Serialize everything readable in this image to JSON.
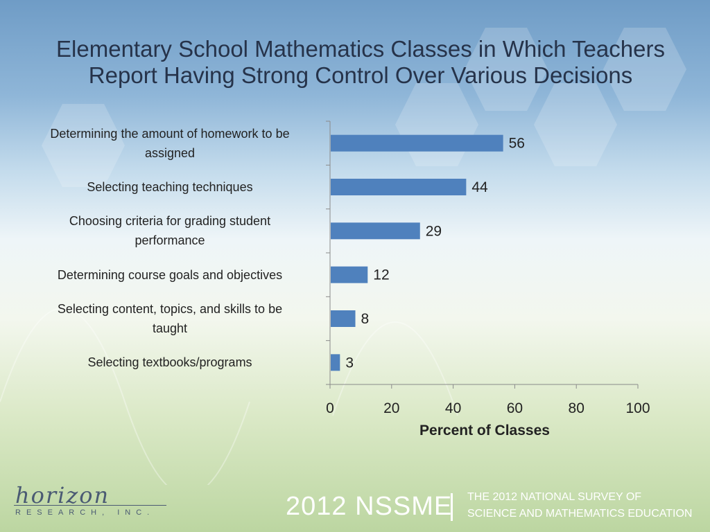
{
  "title": {
    "line1": "Elementary School Mathematics Classes in Which Teachers",
    "line2": "Report Having Strong Control Over Various Decisions"
  },
  "chart_data": {
    "type": "bar",
    "orientation": "horizontal",
    "categories": [
      "Determining the amount of homework to be assigned",
      "Selecting teaching techniques",
      "Choosing criteria for grading student performance",
      "Determining course goals and objectives",
      "Selecting content, topics, and skills to be taught",
      "Selecting textbooks/programs"
    ],
    "values": [
      56,
      44,
      29,
      12,
      8,
      3
    ],
    "xlabel": "Percent of Classes",
    "ylabel": "",
    "xlim": [
      0,
      100
    ],
    "x_ticks": [
      "0",
      "20",
      "40",
      "60",
      "80",
      "100"
    ],
    "bar_color": "#4f81bd",
    "grid": false,
    "data_labels": true
  },
  "category_label_lines": [
    [
      "Determining the amount of homework to be",
      "assigned"
    ],
    [
      "Selecting teaching techniques"
    ],
    [
      "Choosing criteria for grading student",
      "performance"
    ],
    [
      "Determining course goals and objectives"
    ],
    [
      "Selecting content, topics, and skills to be",
      "taught"
    ],
    [
      "Selecting textbooks/programs"
    ]
  ],
  "footer": {
    "logo_top": "horizon",
    "logo_bottom": "RESEARCH, INC.",
    "year_label": "2012 NSSME",
    "survey_line1": "THE 2012 NATIONAL SURVEY OF",
    "survey_line2": "SCIENCE AND MATHEMATICS EDUCATION"
  }
}
